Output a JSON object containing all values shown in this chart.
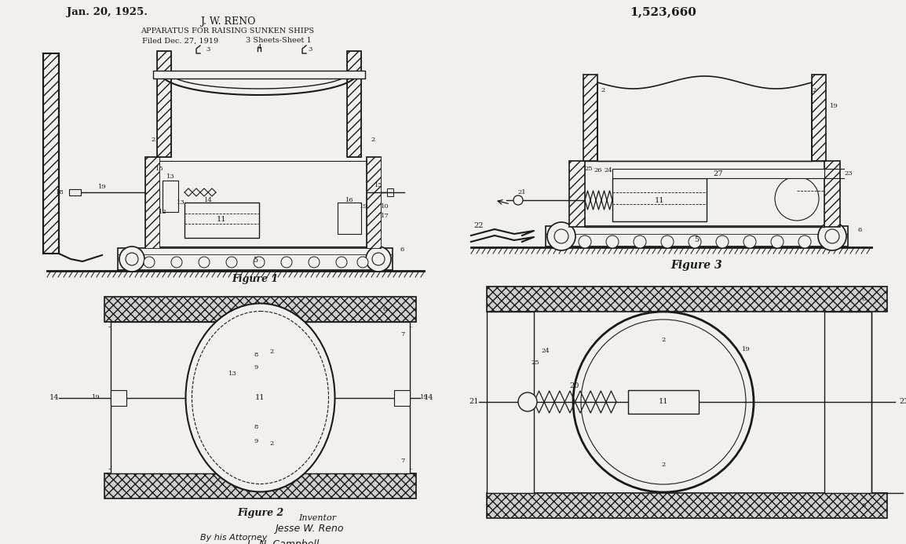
{
  "title_left": "Jan. 20, 1925.",
  "title_right": "1,523,660",
  "inventor_name": "J. W. RENO",
  "apparatus_title": "APPARATUS FOR RAISING SUNKEN SHIPS",
  "filed_text": "Filed Dec. 27, 1919",
  "sheets_text": "3 Sheets-Sheet 1",
  "figure1_label": "Figure 1",
  "figure2_label": "Figure 2",
  "figure3_label": "Figure 3",
  "inventor_text": "Inventor",
  "inventor_sig": "Jesse W. Reno",
  "attorney_text": "By his Attorney",
  "attorney_sig": "L. N. Campbell",
  "bg_color": "#f2f0ec",
  "line_color": "#1a1a1a"
}
